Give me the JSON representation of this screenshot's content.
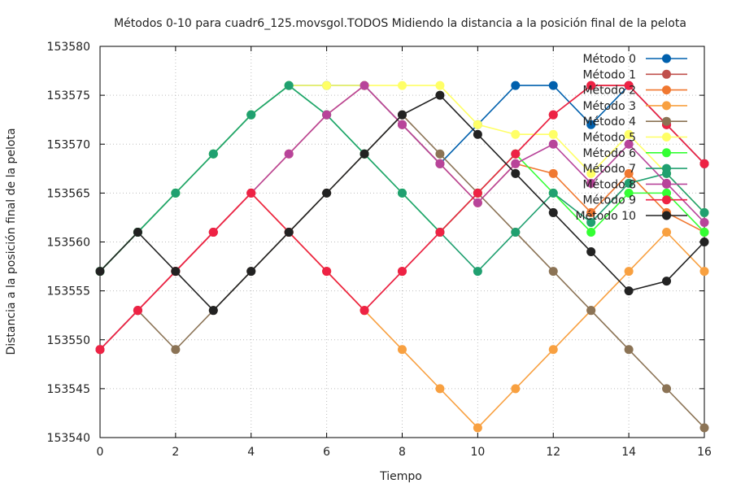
{
  "chart_data": {
    "type": "line",
    "title": "Métodos 0-10 para cuadr6_125.movsgol.TODOS Midiendo la distancia a la posición final de la pelota",
    "xlabel": "Tiempo",
    "ylabel": "Distancia a la posición final de la pelota",
    "xlim": [
      0,
      16
    ],
    "ylim": [
      153540,
      153580
    ],
    "xticks": [
      0,
      2,
      4,
      6,
      8,
      10,
      12,
      14,
      16
    ],
    "yticks": [
      153540,
      153545,
      153550,
      153555,
      153560,
      153565,
      153570,
      153575,
      153580
    ],
    "grid": true,
    "legend_position": "top-right",
    "x": [
      0,
      1,
      2,
      3,
      4,
      5,
      6,
      7,
      8,
      9,
      10,
      11,
      12,
      13,
      14,
      15,
      16
    ],
    "series": [
      {
        "name": "Método 0",
        "color": "#0060ad",
        "values": [
          153557,
          153561,
          153565,
          153569,
          153573,
          153576,
          153576,
          153576,
          153572,
          153568,
          153572,
          153576,
          153576,
          153572,
          153576,
          153572,
          153568
        ]
      },
      {
        "name": "Método 1",
        "color": "#c0504d",
        "values": [
          153549,
          153553,
          153557,
          153561,
          153565,
          153561,
          153557,
          153553,
          153557,
          153561,
          153565,
          153569,
          153573,
          153576,
          153576,
          153572,
          153568
        ]
      },
      {
        "name": "Método 2",
        "color": "#f07830",
        "values": [
          153549,
          153553,
          153557,
          153561,
          153565,
          153569,
          153573,
          153576,
          153572,
          153568,
          153564,
          153568,
          153567,
          153563,
          153567,
          153563,
          153561
        ]
      },
      {
        "name": "Método 3",
        "color": "#f8a040",
        "values": [
          153549,
          153553,
          153557,
          153561,
          153565,
          153561,
          153557,
          153553,
          153549,
          153545,
          153541,
          153545,
          153549,
          153553,
          153557,
          153561,
          153557
        ]
      },
      {
        "name": "Método 4",
        "color": "#8b7355",
        "values": [
          153549,
          153553,
          153549,
          153553,
          153557,
          153561,
          153565,
          153569,
          153573,
          153569,
          153565,
          153561,
          153557,
          153553,
          153549,
          153545,
          153541
        ]
      },
      {
        "name": "Método 5",
        "color": "#ffff66",
        "values": [
          153557,
          153561,
          153565,
          153569,
          153573,
          153576,
          153576,
          153576,
          153576,
          153576,
          153572,
          153571,
          153571,
          153567,
          153571,
          153567,
          153563
        ]
      },
      {
        "name": "Método 6",
        "color": "#33ff33",
        "values": [
          153557,
          153561,
          153565,
          153569,
          153573,
          153576,
          153573,
          153569,
          153565,
          153561,
          153565,
          153569,
          153565,
          153561,
          153565,
          153565,
          153561
        ]
      },
      {
        "name": "Método 7",
        "color": "#20a070",
        "values": [
          153557,
          153561,
          153565,
          153569,
          153573,
          153576,
          153573,
          153569,
          153565,
          153561,
          153557,
          153561,
          153565,
          153562,
          153566,
          153567,
          153563
        ]
      },
      {
        "name": "Método 8",
        "color": "#b8449a",
        "values": [
          153549,
          153553,
          153557,
          153561,
          153565,
          153569,
          153573,
          153576,
          153572,
          153568,
          153564,
          153568,
          153570,
          153566,
          153570,
          153566,
          153562
        ]
      },
      {
        "name": "Método 9",
        "color": "#ee2244",
        "values": [
          153549,
          153553,
          153557,
          153561,
          153565,
          153561,
          153557,
          153553,
          153557,
          153561,
          153565,
          153569,
          153573,
          153576,
          153576,
          153572,
          153568
        ]
      },
      {
        "name": "Método 10",
        "color": "#222222",
        "values": [
          153557,
          153561,
          153557,
          153553,
          153557,
          153561,
          153565,
          153569,
          153573,
          153575,
          153571,
          153567,
          153563,
          153559,
          153555,
          153556,
          153560
        ]
      }
    ]
  }
}
